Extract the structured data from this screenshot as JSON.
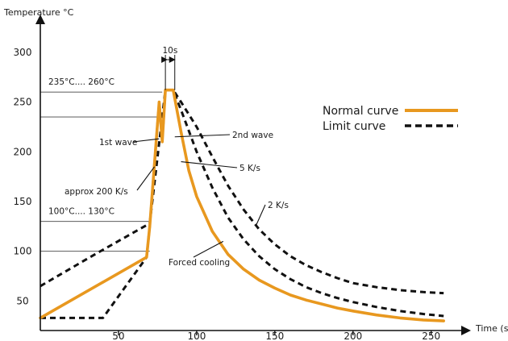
{
  "chart_data": {
    "type": "line",
    "xlabel": "Time (s)",
    "ylabel": "Temperature °C",
    "xlim": [
      0,
      262
    ],
    "ylim": [
      22,
      312
    ],
    "x_ticks": [
      50,
      100,
      150,
      200,
      250
    ],
    "y_ticks": [
      50,
      100,
      150,
      200,
      250,
      300
    ],
    "grid": false,
    "legend_position": "right",
    "colors": {
      "normal": "#E8981F",
      "limit": "#111111",
      "axis": "#111111"
    },
    "series": [
      {
        "name": "Normal curve",
        "style": "solid",
        "x": [
          0,
          68,
          70,
          76,
          78,
          80,
          85,
          90,
          95,
          100,
          110,
          120,
          130,
          140,
          150,
          160,
          170,
          180,
          190,
          200,
          215,
          230,
          245,
          258
        ],
        "y": [
          33,
          94,
          125,
          250,
          210,
          262,
          262,
          220,
          181,
          155,
          120,
          97,
          82,
          71,
          63,
          56,
          51,
          47,
          43,
          40,
          36,
          33,
          31,
          30
        ]
      },
      {
        "name": "Limit curve",
        "style": "dashed",
        "segments": [
          {
            "x": [
              0,
              40,
              68,
              70,
              76,
              78,
              80,
              85,
              90,
              100,
              110,
              120,
              130,
              140,
              150,
              160,
              170,
              180,
              190,
              200,
              215,
              230,
              245,
              258
            ],
            "y": [
              33,
              33,
              94,
              125,
              250,
              210,
              262,
              262,
              242,
              200,
              164,
              134,
              112,
              95,
              82,
              72,
              64,
              58,
              53,
              49,
              44,
              40,
              37,
              35
            ]
          },
          {
            "x": [
              0,
              35,
              70,
              80,
              85,
              90,
              100,
              110,
              120,
              130,
              140,
              150,
              160,
              170,
              180,
              190,
              200,
              215,
              230,
              245,
              258
            ],
            "y": [
              65,
              97,
              128,
              262,
              262,
              250,
              225,
              195,
              166,
              142,
              122,
              107,
              95,
              86,
              79,
              73,
              68,
              64,
              61,
              59,
              58
            ]
          }
        ]
      }
    ],
    "reference_lines": [
      {
        "label": "235°C.... 260°C",
        "y": [
          235,
          260
        ],
        "x_end": 78
      },
      {
        "label": "100°C.... 130°C",
        "y": [
          100,
          130
        ],
        "x_end": 70
      }
    ],
    "annotations": [
      {
        "text": "10s",
        "kind": "interval",
        "x": [
          80,
          86
        ],
        "y": 262
      },
      {
        "text": "1st wave",
        "kind": "pointer",
        "x": 76,
        "y": 213
      },
      {
        "text": "2nd wave",
        "kind": "pointer",
        "x": 86,
        "y": 215
      },
      {
        "text": "approx 200 K/s",
        "kind": "pointer",
        "x": 73,
        "y": 185
      },
      {
        "text": "5 K/s",
        "kind": "pointer",
        "x": 90,
        "y": 190
      },
      {
        "text": "2 K/s",
        "kind": "pointer",
        "x": 138,
        "y": 126
      },
      {
        "text": "Forced cooling",
        "kind": "pointer",
        "x": 117,
        "y": 110
      }
    ]
  }
}
